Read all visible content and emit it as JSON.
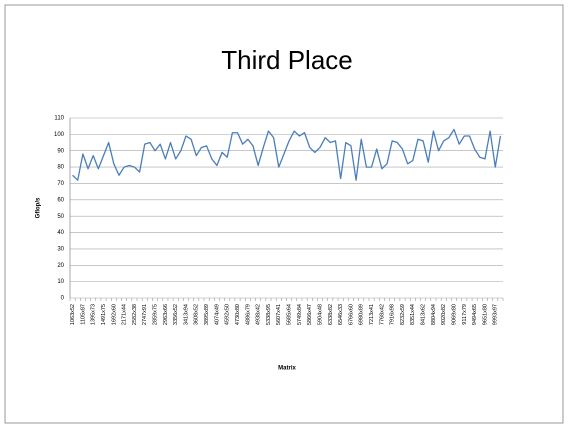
{
  "chart_data": {
    "type": "line",
    "title": "Third Place",
    "y_label": "Gflop/s",
    "x_label": "Matrix",
    "categories": [
      "1063x52",
      null,
      "1105x87",
      null,
      "1395x73",
      null,
      "1491x75",
      null,
      "1692x60",
      null,
      "2171x44",
      null,
      "2582x38",
      null,
      "2747x91",
      null,
      "2859x75",
      null,
      "2963x66",
      null,
      "3356x52",
      null,
      "3413x94",
      null,
      "3608x52",
      null,
      "3895x89",
      null,
      "4074x49",
      null,
      "4592x50",
      null,
      "4730x80",
      null,
      "4886x79",
      null,
      "4938x42",
      null,
      "5338x95",
      null,
      "5607x41",
      null,
      "5685x64",
      null,
      "5749x84",
      null,
      "5866x47",
      null,
      "5904x48",
      null,
      "6338x82",
      null,
      "6546x33",
      null,
      "6766x60",
      null,
      "6980x89",
      null,
      "7213x41",
      null,
      "7768x42",
      null,
      "7916x98",
      null,
      "8232x59",
      null,
      "8351x44",
      null,
      "8413x62",
      null,
      "8804x94",
      null,
      "9020x82",
      null,
      "9069x80",
      null,
      "9117x79",
      null,
      "9494x65",
      null,
      "9651x80",
      null,
      "9993x97",
      null
    ],
    "series": [
      {
        "name": "Gflop/s",
        "color": "#4a7ebb",
        "values": [
          75,
          72,
          88,
          79,
          87,
          79,
          87,
          95,
          82,
          75,
          80,
          81,
          80,
          77,
          94,
          95,
          90,
          94,
          85,
          95,
          85,
          90,
          99,
          97,
          87,
          92,
          93,
          85,
          81,
          89,
          86,
          101,
          101,
          94,
          97,
          93,
          81,
          92,
          102,
          98,
          80,
          88,
          96,
          102,
          99,
          101,
          92,
          89,
          92,
          98,
          95,
          96,
          73,
          95,
          93,
          72,
          97,
          80,
          80,
          91,
          79,
          82,
          96,
          95,
          91,
          82,
          84,
          97,
          96,
          83,
          102,
          90,
          96,
          98,
          103,
          94,
          99,
          99,
          91,
          86,
          85,
          102,
          80,
          99
        ]
      }
    ],
    "ylim": [
      0,
      110
    ],
    "yticks": [
      0,
      10,
      20,
      30,
      40,
      50,
      60,
      70,
      80,
      90,
      100,
      110
    ],
    "grid": true
  }
}
